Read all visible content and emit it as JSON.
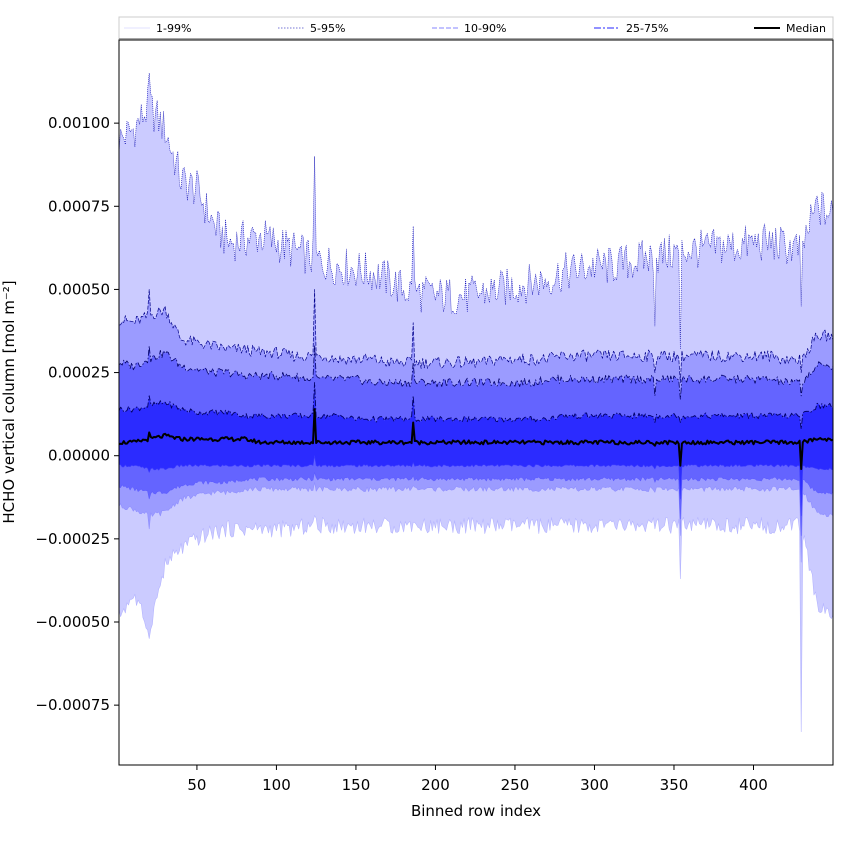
{
  "chart_data": {
    "type": "area",
    "title": "",
    "xlabel": "Binned row index",
    "ylabel": "HCHO vertical column [mol m⁻²]",
    "xlim": [
      1,
      450
    ],
    "ylim": [
      -0.00093,
      0.00125
    ],
    "xticks": [
      50,
      100,
      150,
      200,
      250,
      300,
      350,
      400
    ],
    "xtick_labels": [
      "50",
      "100",
      "150",
      "200",
      "250",
      "300",
      "350",
      "400"
    ],
    "yticks": [
      0.001,
      0.00075,
      0.0005,
      0.00025,
      0.0,
      -0.00025,
      -0.0005,
      -0.00075
    ],
    "ytick_labels": [
      "0.00100",
      "0.00075",
      "0.00050",
      "0.00025",
      "0.00000",
      "−0.00025",
      "−0.00050",
      "−0.00075"
    ],
    "grid": false,
    "legend_position": "top",
    "legend": [
      "1-99%",
      "5-95%",
      "10-90%",
      "25-75%",
      "Median"
    ],
    "colors": {
      "band_1_99": "#cbcbff",
      "band_5_95": "#9b9bff",
      "band_10_90": "#6464ff",
      "band_25_75": "#2b2bff",
      "line_1_99": "#b4b4ff",
      "line_5_95": "#0000b0",
      "line_10_90": "#00008a",
      "line_25_75": "#000066",
      "median": "#000000"
    },
    "x_knots": [
      1,
      10,
      20,
      30,
      40,
      50,
      60,
      70,
      80,
      90,
      100,
      110,
      120,
      130,
      140,
      150,
      160,
      170,
      180,
      190,
      200,
      210,
      220,
      230,
      240,
      250,
      260,
      270,
      280,
      290,
      300,
      310,
      320,
      330,
      340,
      350,
      360,
      370,
      380,
      390,
      400,
      410,
      420,
      430,
      440,
      450
    ],
    "series": [
      {
        "name": "99th percentile",
        "values": [
          0.00095,
          0.00098,
          0.00105,
          0.00098,
          0.00083,
          0.0008,
          0.0007,
          0.00064,
          0.00065,
          0.00066,
          0.00064,
          0.00062,
          0.0006,
          0.00058,
          0.00057,
          0.00056,
          0.00055,
          0.00053,
          0.0005,
          0.00049,
          0.00048,
          0.00048,
          0.00048,
          0.00049,
          0.0005,
          0.00051,
          0.00052,
          0.00053,
          0.00055,
          0.00056,
          0.00057,
          0.00057,
          0.00058,
          0.00059,
          0.0006,
          0.00061,
          0.00062,
          0.00062,
          0.00063,
          0.00063,
          0.00064,
          0.00064,
          0.00063,
          0.00062,
          0.00075,
          0.00072
        ]
      },
      {
        "name": "95th percentile",
        "values": [
          0.00041,
          0.0004,
          0.00042,
          0.00044,
          0.00035,
          0.00034,
          0.00033,
          0.00032,
          0.00032,
          0.00031,
          0.00031,
          0.0003,
          0.0003,
          0.0003,
          0.00029,
          0.00029,
          0.00029,
          0.00028,
          0.00028,
          0.00028,
          0.00028,
          0.00028,
          0.00028,
          0.00028,
          0.00029,
          0.00029,
          0.00029,
          0.00029,
          0.0003,
          0.0003,
          0.0003,
          0.0003,
          0.0003,
          0.0003,
          0.0003,
          0.0003,
          0.0003,
          0.0003,
          0.0003,
          0.0003,
          0.0003,
          0.0003,
          0.00029,
          0.00029,
          0.00036,
          0.00036
        ]
      },
      {
        "name": "90th percentile",
        "values": [
          0.00028,
          0.00027,
          0.00029,
          0.00031,
          0.00027,
          0.00026,
          0.00025,
          0.00025,
          0.00024,
          0.00024,
          0.00024,
          0.00024,
          0.00023,
          0.00023,
          0.00023,
          0.00023,
          0.00022,
          0.00022,
          0.00022,
          0.00022,
          0.00022,
          0.00022,
          0.00022,
          0.00022,
          0.00022,
          0.00022,
          0.00022,
          0.00023,
          0.00023,
          0.00023,
          0.00023,
          0.00023,
          0.00023,
          0.00023,
          0.00023,
          0.00023,
          0.00023,
          0.00023,
          0.00023,
          0.00023,
          0.00023,
          0.00023,
          0.00022,
          0.00022,
          0.00027,
          0.00027
        ]
      },
      {
        "name": "75th percentile",
        "values": [
          0.00014,
          0.00014,
          0.00015,
          0.00016,
          0.00014,
          0.00013,
          0.00013,
          0.00013,
          0.00012,
          0.00012,
          0.00012,
          0.00012,
          0.00012,
          0.00012,
          0.00012,
          0.00011,
          0.00011,
          0.00011,
          0.00011,
          0.00011,
          0.00011,
          0.00011,
          0.00011,
          0.00011,
          0.00011,
          0.00011,
          0.00011,
          0.00011,
          0.00012,
          0.00012,
          0.00012,
          0.00012,
          0.00012,
          0.00012,
          0.00012,
          0.00012,
          0.00012,
          0.00012,
          0.00012,
          0.00012,
          0.00012,
          0.00012,
          0.00012,
          0.00012,
          0.00015,
          0.00015
        ]
      },
      {
        "name": "Median",
        "values": [
          4e-05,
          4e-05,
          5e-05,
          6e-05,
          5e-05,
          5e-05,
          5e-05,
          5e-05,
          5e-05,
          4e-05,
          4e-05,
          4e-05,
          4e-05,
          4e-05,
          4e-05,
          4e-05,
          4e-05,
          4e-05,
          4e-05,
          4e-05,
          4e-05,
          4e-05,
          4e-05,
          4e-05,
          4e-05,
          4e-05,
          4e-05,
          4e-05,
          4e-05,
          4e-05,
          4e-05,
          4e-05,
          4e-05,
          4e-05,
          4e-05,
          4e-05,
          4e-05,
          4e-05,
          4e-05,
          4e-05,
          4e-05,
          4e-05,
          4e-05,
          4e-05,
          5e-05,
          5e-05
        ]
      },
      {
        "name": "25th percentile",
        "values": [
          -3e-05,
          -3e-05,
          -4e-05,
          -4e-05,
          -3e-05,
          -3e-05,
          -3e-05,
          -3e-05,
          -3e-05,
          -3e-05,
          -3e-05,
          -3e-05,
          -3e-05,
          -3e-05,
          -3e-05,
          -3e-05,
          -3e-05,
          -3e-05,
          -3e-05,
          -3e-05,
          -3e-05,
          -3e-05,
          -3e-05,
          -3e-05,
          -3e-05,
          -3e-05,
          -3e-05,
          -3e-05,
          -3e-05,
          -3e-05,
          -3e-05,
          -3e-05,
          -3e-05,
          -3e-05,
          -3e-05,
          -3e-05,
          -3e-05,
          -3e-05,
          -3e-05,
          -3e-05,
          -3e-05,
          -3e-05,
          -3e-05,
          -3e-05,
          -4e-05,
          -4e-05
        ]
      },
      {
        "name": "10th percentile",
        "values": [
          -9e-05,
          -0.0001,
          -0.00011,
          -0.00011,
          -9e-05,
          -8e-05,
          -8e-05,
          -8e-05,
          -7e-05,
          -7e-05,
          -7e-05,
          -7e-05,
          -7e-05,
          -7e-05,
          -7e-05,
          -7e-05,
          -7e-05,
          -7e-05,
          -7e-05,
          -7e-05,
          -7e-05,
          -7e-05,
          -7e-05,
          -7e-05,
          -7e-05,
          -7e-05,
          -7e-05,
          -7e-05,
          -7e-05,
          -7e-05,
          -7e-05,
          -7e-05,
          -7e-05,
          -7e-05,
          -7e-05,
          -7e-05,
          -7e-05,
          -7e-05,
          -7e-05,
          -7e-05,
          -7e-05,
          -7e-05,
          -7e-05,
          -7e-05,
          -0.00011,
          -0.00011
        ]
      },
      {
        "name": "5th percentile",
        "values": [
          -0.00015,
          -0.00016,
          -0.00018,
          -0.00017,
          -0.00013,
          -0.00012,
          -0.00011,
          -0.00011,
          -0.0001,
          -0.0001,
          -0.0001,
          -0.0001,
          -0.0001,
          -0.0001,
          -0.0001,
          -0.0001,
          -0.0001,
          -0.0001,
          -0.0001,
          -0.0001,
          -0.0001,
          -0.0001,
          -0.0001,
          -0.0001,
          -0.0001,
          -0.0001,
          -0.0001,
          -0.0001,
          -0.0001,
          -0.0001,
          -0.0001,
          -0.0001,
          -0.0001,
          -0.0001,
          -0.0001,
          -0.0001,
          -0.0001,
          -0.0001,
          -0.0001,
          -0.0001,
          -0.0001,
          -0.0001,
          -0.0001,
          -0.0001,
          -0.00017,
          -0.00018
        ]
      },
      {
        "name": "1st percentile",
        "values": [
          -0.00048,
          -0.00042,
          -0.00052,
          -0.00033,
          -0.00028,
          -0.00025,
          -0.00023,
          -0.00022,
          -0.00022,
          -0.00022,
          -0.00022,
          -0.00022,
          -0.00021,
          -0.00021,
          -0.00021,
          -0.00021,
          -0.00021,
          -0.00021,
          -0.00021,
          -0.00021,
          -0.00021,
          -0.00021,
          -0.00021,
          -0.00021,
          -0.00021,
          -0.00021,
          -0.00021,
          -0.00021,
          -0.00021,
          -0.00021,
          -0.00021,
          -0.00021,
          -0.00021,
          -0.00021,
          -0.00021,
          -0.00021,
          -0.00021,
          -0.00021,
          -0.00021,
          -0.00021,
          -0.00021,
          -0.00021,
          -0.00021,
          -0.00021,
          -0.00045,
          -0.00048
        ]
      }
    ],
    "spikes": [
      {
        "x": 20,
        "values": [
          0.00115,
          0.0005,
          0.00033,
          0.00018,
          7e-05,
          -5e-05,
          -0.00013,
          -0.00022,
          -0.00055
        ]
      },
      {
        "x": 124,
        "values": [
          0.0009,
          0.0005,
          0.00033,
          0.00022,
          0.00014,
          0.0,
          -5e-05,
          -8e-05,
          -0.00018
        ]
      },
      {
        "x": 186,
        "values": [
          0.00069,
          0.0004,
          0.00028,
          0.00018,
          0.0001,
          -2e-05,
          -6e-05,
          -9e-05,
          -0.0002
        ]
      },
      {
        "x": 338,
        "values": [
          0.00039,
          0.00025,
          0.00018,
          0.0001,
          3e-05,
          -4e-05,
          -8e-05,
          -0.00011,
          -0.00022
        ]
      },
      {
        "x": 354,
        "values": [
          0.00032,
          0.00022,
          0.00017,
          0.0001,
          -3e-05,
          -0.00013,
          -0.00019,
          -0.00024,
          -0.00037
        ]
      },
      {
        "x": 430,
        "values": [
          0.00045,
          0.00025,
          0.00018,
          8e-05,
          -4e-05,
          -0.00018,
          -0.00024,
          -0.00032,
          -0.00083
        ]
      }
    ]
  }
}
